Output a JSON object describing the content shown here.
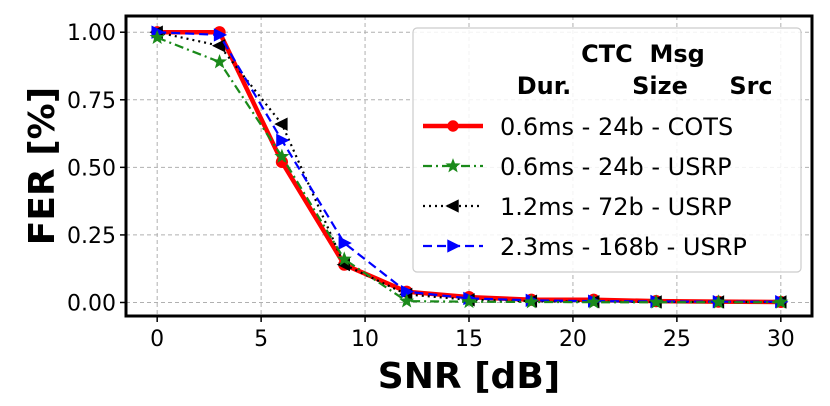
{
  "chart_data": {
    "type": "line",
    "xlabel": "SNR [dB]",
    "ylabel": "FER [%]",
    "xlim": [
      -1.5,
      31.5
    ],
    "ylim": [
      -0.05,
      1.06
    ],
    "xticks": [
      "0",
      "5",
      "10",
      "15",
      "20",
      "25",
      "30"
    ],
    "yticks": [
      "0.00",
      "0.25",
      "0.50",
      "0.75",
      "1.00"
    ],
    "grid": true,
    "legend_placement": "top-right",
    "legend_header": {
      "line1": "CTC  Msg",
      "line2": [
        "Dur.",
        "Size",
        "Src"
      ]
    },
    "series": [
      {
        "name": "0.6ms -   24b - COTS",
        "color": "#ff0000",
        "marker": "circle",
        "dash": "solid",
        "x": [
          0,
          3,
          6,
          9,
          12,
          15,
          18,
          21,
          24,
          27,
          30
        ],
        "y": [
          1.0,
          1.0,
          0.52,
          0.14,
          0.04,
          0.02,
          0.01,
          0.01,
          0.005,
          0.003,
          0.002
        ]
      },
      {
        "name": "0.6ms -   24b - USRP",
        "color": "#1a8a1a",
        "marker": "star",
        "dash": "dashdot",
        "x": [
          0,
          3,
          6,
          9,
          12,
          15,
          18,
          21,
          24,
          27,
          30
        ],
        "y": [
          0.98,
          0.89,
          0.54,
          0.16,
          0.005,
          0.003,
          0.002,
          0.001,
          0.001,
          0.001,
          0.001
        ]
      },
      {
        "name": "1.2ms -   72b - USRP",
        "color": "#000000",
        "marker": "triangle-left",
        "dash": "dotted",
        "x": [
          0,
          3,
          6,
          9,
          12,
          15,
          18,
          21,
          24,
          27,
          30
        ],
        "y": [
          1.0,
          0.95,
          0.66,
          0.14,
          0.03,
          0.01,
          0.005,
          0.003,
          0.002,
          0.002,
          0.002
        ]
      },
      {
        "name": "2.3ms - 168b - USRP",
        "color": "#0000ff",
        "marker": "triangle-right",
        "dash": "dashed",
        "x": [
          0,
          3,
          6,
          9,
          12,
          15,
          18,
          21,
          24,
          27,
          30
        ],
        "y": [
          1.0,
          0.99,
          0.6,
          0.22,
          0.04,
          0.015,
          0.008,
          0.005,
          0.004,
          0.003,
          0.003
        ]
      }
    ]
  }
}
